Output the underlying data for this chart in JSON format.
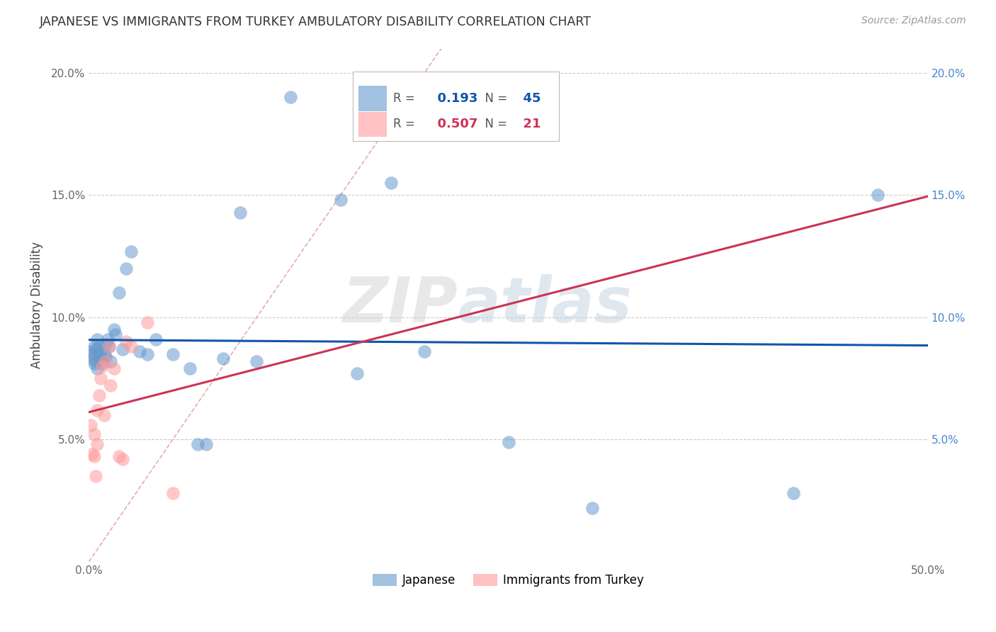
{
  "title": "JAPANESE VS IMMIGRANTS FROM TURKEY AMBULATORY DISABILITY CORRELATION CHART",
  "source": "Source: ZipAtlas.com",
  "ylabel": "Ambulatory Disability",
  "xlim": [
    0.0,
    0.5
  ],
  "ylim": [
    0.0,
    0.21
  ],
  "xticks": [
    0.0,
    0.1,
    0.2,
    0.3,
    0.4,
    0.5
  ],
  "yticks": [
    0.05,
    0.1,
    0.15,
    0.2
  ],
  "xticklabels": [
    "0.0%",
    "",
    "",
    "",
    "",
    "50.0%"
  ],
  "yticklabels_left": [
    "5.0%",
    "10.0%",
    "15.0%",
    "20.0%"
  ],
  "yticklabels_right": [
    "5.0%",
    "10.0%",
    "15.0%",
    "20.0%"
  ],
  "R_japanese": 0.193,
  "N_japanese": 45,
  "R_turkey": 0.507,
  "N_turkey": 21,
  "japanese_color": "#6699CC",
  "turkey_color": "#FF9999",
  "trend_japanese_color": "#1155AA",
  "trend_turkey_color": "#CC3355",
  "diagonal_color": "#DD9999",
  "watermark_zip": "ZIP",
  "watermark_atlas": "atlas",
  "japanese_x": [
    0.001,
    0.002,
    0.002,
    0.003,
    0.003,
    0.004,
    0.004,
    0.005,
    0.005,
    0.006,
    0.006,
    0.007,
    0.007,
    0.008,
    0.009,
    0.01,
    0.01,
    0.011,
    0.012,
    0.013,
    0.015,
    0.016,
    0.018,
    0.02,
    0.022,
    0.025,
    0.03,
    0.035,
    0.04,
    0.05,
    0.06,
    0.065,
    0.07,
    0.08,
    0.09,
    0.1,
    0.12,
    0.15,
    0.16,
    0.18,
    0.2,
    0.25,
    0.3,
    0.42,
    0.47
  ],
  "japanese_y": [
    0.086,
    0.083,
    0.085,
    0.081,
    0.088,
    0.082,
    0.087,
    0.079,
    0.091,
    0.084,
    0.088,
    0.083,
    0.086,
    0.081,
    0.085,
    0.089,
    0.084,
    0.091,
    0.088,
    0.082,
    0.095,
    0.093,
    0.11,
    0.087,
    0.12,
    0.127,
    0.086,
    0.085,
    0.091,
    0.085,
    0.079,
    0.048,
    0.048,
    0.083,
    0.143,
    0.082,
    0.19,
    0.148,
    0.077,
    0.155,
    0.086,
    0.049,
    0.022,
    0.028,
    0.15
  ],
  "turkey_x": [
    0.001,
    0.002,
    0.003,
    0.003,
    0.004,
    0.005,
    0.005,
    0.006,
    0.007,
    0.008,
    0.009,
    0.01,
    0.012,
    0.013,
    0.015,
    0.018,
    0.02,
    0.022,
    0.025,
    0.035,
    0.05
  ],
  "turkey_y": [
    0.056,
    0.044,
    0.052,
    0.043,
    0.035,
    0.048,
    0.062,
    0.068,
    0.075,
    0.08,
    0.06,
    0.082,
    0.088,
    0.072,
    0.079,
    0.043,
    0.042,
    0.09,
    0.088,
    0.098,
    0.028
  ]
}
